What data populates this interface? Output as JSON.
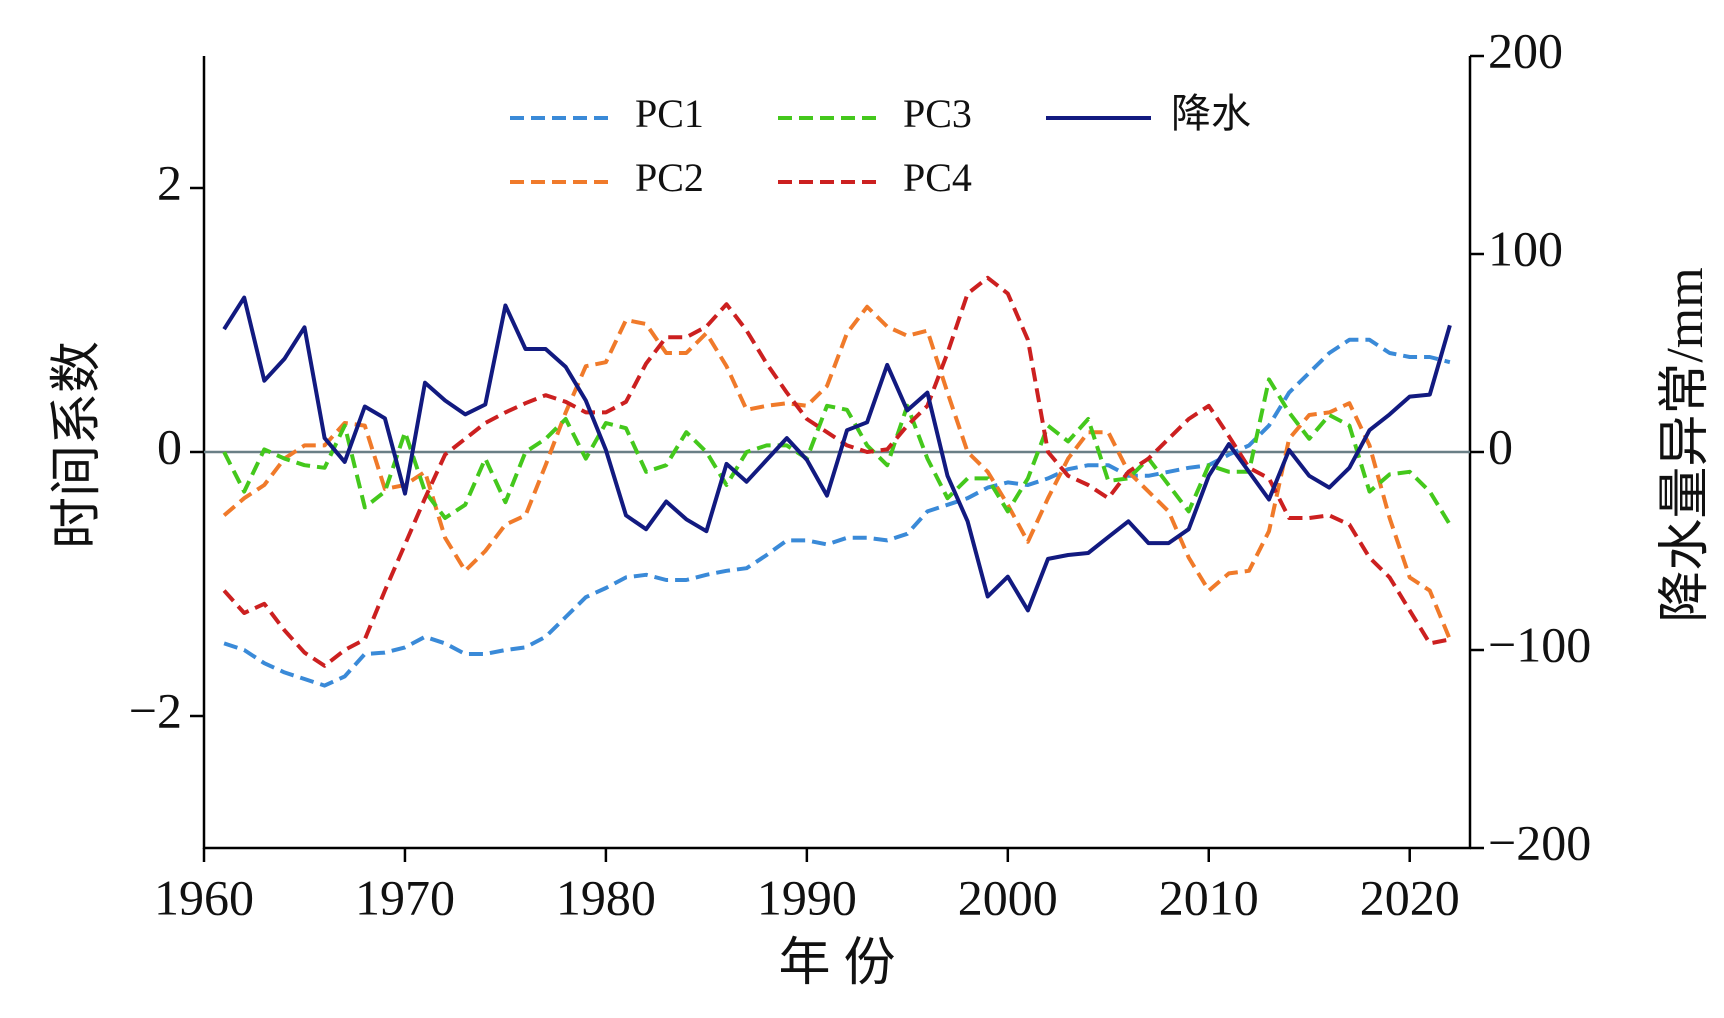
{
  "chart_data": {
    "type": "line",
    "x_label": "年 份",
    "y_label": "时间系数",
    "y2_label": "降水量异常/mm",
    "x": [
      1961,
      1962,
      1963,
      1964,
      1965,
      1966,
      1967,
      1968,
      1969,
      1970,
      1971,
      1972,
      1973,
      1974,
      1975,
      1976,
      1977,
      1978,
      1979,
      1980,
      1981,
      1982,
      1983,
      1984,
      1985,
      1986,
      1987,
      1988,
      1989,
      1990,
      1991,
      1992,
      1993,
      1994,
      1995,
      1996,
      1997,
      1998,
      1999,
      2000,
      2001,
      2002,
      2003,
      2004,
      2005,
      2006,
      2007,
      2008,
      2009,
      2010,
      2011,
      2012,
      2013,
      2014,
      2015,
      2016,
      2017,
      2018,
      2019,
      2020,
      2021,
      2022
    ],
    "xlim": [
      1960,
      2023
    ],
    "xticks": [
      1960,
      1970,
      1980,
      1990,
      2000,
      2010,
      2020
    ],
    "ylim": [
      -3,
      3
    ],
    "yticks": [
      {
        "value": -2,
        "label": "−2"
      },
      0,
      2
    ],
    "y2lim": [
      -200,
      200
    ],
    "y2ticks": [
      {
        "value": -200,
        "label": "−200"
      },
      {
        "value": -100,
        "label": "−100"
      },
      0,
      100,
      200
    ],
    "hline": 0,
    "hline_color": "#6a7f86",
    "series": [
      {
        "name": "PC1",
        "color": "#3a8ad8",
        "line_style": "dashed",
        "values": [
          -1.45,
          -1.5,
          -1.6,
          -1.67,
          -1.72,
          -1.77,
          -1.7,
          -1.53,
          -1.52,
          -1.48,
          -1.4,
          -1.45,
          -1.53,
          -1.53,
          -1.5,
          -1.48,
          -1.4,
          -1.25,
          -1.1,
          -1.03,
          -0.95,
          -0.93,
          -0.97,
          -0.97,
          -0.93,
          -0.9,
          -0.88,
          -0.78,
          -0.67,
          -0.67,
          -0.7,
          -0.65,
          -0.65,
          -0.67,
          -0.62,
          -0.45,
          -0.4,
          -0.35,
          -0.27,
          -0.23,
          -0.25,
          -0.2,
          -0.13,
          -0.1,
          -0.1,
          -0.18,
          -0.18,
          -0.15,
          -0.12,
          -0.1,
          -0.02,
          0.05,
          0.2,
          0.45,
          0.6,
          0.75,
          0.85,
          0.85,
          0.75,
          0.72,
          0.72,
          0.68
        ]
      },
      {
        "name": "PC2",
        "color": "#f07a2a",
        "line_style": "dashed",
        "values": [
          -0.48,
          -0.35,
          -0.25,
          -0.05,
          0.05,
          0.05,
          0.22,
          0.2,
          -0.28,
          -0.25,
          -0.15,
          -0.65,
          -0.9,
          -0.75,
          -0.55,
          -0.48,
          -0.1,
          0.3,
          0.65,
          0.68,
          1.0,
          0.97,
          0.75,
          0.75,
          0.9,
          0.65,
          0.32,
          0.35,
          0.37,
          0.35,
          0.5,
          0.9,
          1.1,
          0.95,
          0.88,
          0.92,
          0.45,
          0.0,
          -0.15,
          -0.4,
          -0.68,
          -0.35,
          -0.05,
          0.15,
          0.15,
          -0.15,
          -0.3,
          -0.45,
          -0.8,
          -1.05,
          -0.92,
          -0.9,
          -0.6,
          0.1,
          0.28,
          0.3,
          0.37,
          0.05,
          -0.5,
          -0.95,
          -1.05,
          -1.42
        ]
      },
      {
        "name": "PC3",
        "color": "#44c81c",
        "line_style": "dashed",
        "values": [
          0.0,
          -0.3,
          0.02,
          -0.05,
          -0.1,
          -0.12,
          0.2,
          -0.42,
          -0.3,
          0.15,
          -0.3,
          -0.5,
          -0.4,
          -0.05,
          -0.38,
          0.0,
          0.1,
          0.25,
          -0.05,
          0.22,
          0.18,
          -0.15,
          -0.1,
          0.15,
          0.0,
          -0.25,
          0.0,
          0.05,
          0.05,
          -0.05,
          0.35,
          0.32,
          0.05,
          -0.1,
          0.35,
          -0.05,
          -0.35,
          -0.2,
          -0.2,
          -0.45,
          -0.2,
          0.2,
          0.08,
          0.25,
          -0.22,
          -0.2,
          -0.05,
          -0.25,
          -0.45,
          -0.1,
          -0.15,
          -0.15,
          0.55,
          0.3,
          0.1,
          0.28,
          0.2,
          -0.3,
          -0.17,
          -0.15,
          -0.3,
          -0.55
        ]
      },
      {
        "name": "PC4",
        "color": "#cc2020",
        "line_style": "dashed",
        "values": [
          -1.05,
          -1.22,
          -1.15,
          -1.35,
          -1.52,
          -1.62,
          -1.5,
          -1.42,
          -1.05,
          -0.7,
          -0.35,
          -0.02,
          0.1,
          0.22,
          0.3,
          0.37,
          0.43,
          0.38,
          0.3,
          0.3,
          0.38,
          0.67,
          0.87,
          0.87,
          0.95,
          1.12,
          0.92,
          0.67,
          0.45,
          0.25,
          0.15,
          0.05,
          0.0,
          0.02,
          0.2,
          0.35,
          0.75,
          1.2,
          1.32,
          1.2,
          0.85,
          0.0,
          -0.18,
          -0.25,
          -0.35,
          -0.15,
          -0.05,
          0.1,
          0.25,
          0.35,
          0.12,
          -0.12,
          -0.2,
          -0.5,
          -0.5,
          -0.48,
          -0.55,
          -0.8,
          -0.95,
          -1.2,
          -1.45,
          -1.42
        ]
      },
      {
        "name": "降水",
        "color": "#121a80",
        "line_style": "solid",
        "axis": "y2",
        "values": [
          62,
          78,
          36,
          47,
          63,
          7,
          -5,
          23,
          17,
          -21,
          35,
          26,
          19,
          24,
          74,
          52,
          52,
          43,
          26,
          1,
          -32,
          -39,
          -25,
          -34,
          -40,
          -6,
          -15,
          -4,
          7,
          -4,
          -22,
          11,
          15,
          44,
          21,
          30,
          -12,
          -35,
          -73,
          -63,
          -80,
          -54,
          -52,
          -51,
          -43,
          -35,
          -46,
          -46,
          -39,
          -12,
          4,
          -10,
          -24,
          1,
          -12,
          -18,
          -8,
          11,
          19,
          28,
          29,
          64
        ]
      }
    ]
  }
}
